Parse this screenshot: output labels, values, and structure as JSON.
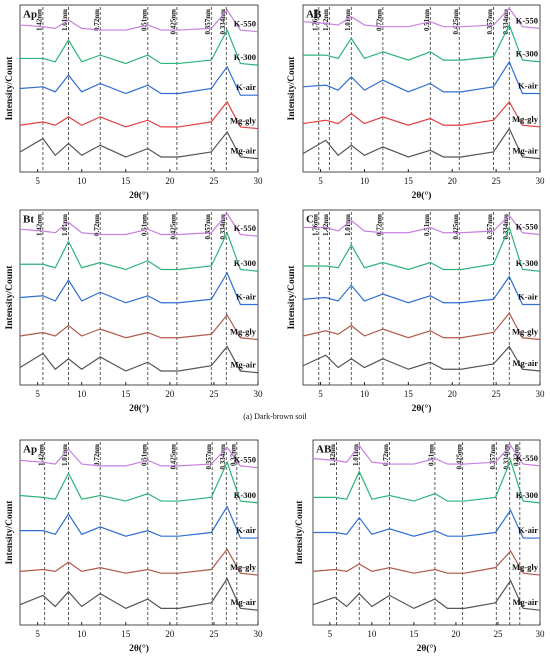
{
  "caption": "(a) Dark-brown soil",
  "chart_data": [
    {
      "type": "line",
      "title": "Ap",
      "x_label": "2θ(°)",
      "y_label": "Intensity/Count",
      "xlim": [
        3,
        30
      ],
      "xticks": [
        5,
        10,
        15,
        20,
        25,
        30
      ],
      "ylim": [
        0,
        100
      ],
      "x": [
        3,
        5.6,
        7,
        8.5,
        10,
        12.1,
        15,
        17.5,
        19,
        21,
        24.7,
        26.5,
        28,
        30
      ],
      "ref_lines": [
        {
          "value": 5.6,
          "label": "1.42nm"
        },
        {
          "value": 8.5,
          "label": "1.01nm"
        },
        {
          "value": 12.1,
          "label": "0.72nm"
        },
        {
          "value": 17.5,
          "label": "0.51nm"
        },
        {
          "value": 20.8,
          "label": "0.425nm"
        },
        {
          "value": 24.7,
          "label": "0.357nm"
        },
        {
          "value": 26.4,
          "label": "0.334nm"
        }
      ],
      "series": [
        {
          "name": "K-550",
          "color": "#c77fe0",
          "values": [
            88,
            87,
            86,
            91,
            86,
            85,
            85,
            88,
            85,
            85,
            86,
            97,
            85,
            84
          ]
        },
        {
          "name": "K-300",
          "color": "#2db37a",
          "values": [
            68,
            68,
            66,
            79,
            66,
            70,
            65,
            70,
            65,
            65,
            67,
            85,
            65,
            64
          ]
        },
        {
          "name": "K-air",
          "color": "#2f6fd0",
          "values": [
            50,
            51,
            48,
            58,
            48,
            53,
            47,
            52,
            47,
            47,
            50,
            63,
            46,
            46
          ]
        },
        {
          "name": "Mg-gly",
          "color": "#e04040",
          "values": [
            28,
            30,
            28,
            33,
            28,
            33,
            27,
            31,
            27,
            27,
            30,
            42,
            27,
            26
          ]
        },
        {
          "name": "Mg-air",
          "color": "#555555",
          "values": [
            12,
            20,
            10,
            17,
            10,
            16,
            9,
            14,
            9,
            9,
            12,
            24,
            9,
            8
          ]
        }
      ]
    },
    {
      "type": "line",
      "title": "AB",
      "x_label": "2θ(°)",
      "y_label": "Intensity/Count",
      "xlim": [
        3,
        30
      ],
      "xticks": [
        5,
        10,
        15,
        20,
        25,
        30
      ],
      "ylim": [
        0,
        100
      ],
      "x": [
        3,
        5.6,
        7,
        8.5,
        10,
        12.1,
        15,
        17.5,
        19,
        21,
        24.7,
        26.5,
        28,
        30
      ],
      "ref_lines": [
        {
          "value": 4.8,
          "label": "1.76nm"
        },
        {
          "value": 6.0,
          "label": "1.42nm"
        },
        {
          "value": 8.5,
          "label": "1.01nm"
        },
        {
          "value": 12.1,
          "label": "0.72nm"
        },
        {
          "value": 17.5,
          "label": "0.51nm"
        },
        {
          "value": 20.8,
          "label": "0.425nm"
        },
        {
          "value": 24.7,
          "label": "0.357nm"
        },
        {
          "value": 26.5,
          "label": "0.334nm"
        }
      ],
      "series": [
        {
          "name": "K-550",
          "color": "#c77fe0",
          "values": [
            90,
            89,
            88,
            93,
            88,
            87,
            87,
            90,
            87,
            87,
            88,
            98,
            87,
            86
          ]
        },
        {
          "name": "K-300",
          "color": "#2db37a",
          "values": [
            70,
            70,
            68,
            80,
            68,
            72,
            67,
            72,
            67,
            67,
            69,
            88,
            67,
            66
          ]
        },
        {
          "name": "K-air",
          "color": "#2f6fd0",
          "values": [
            51,
            52,
            49,
            57,
            49,
            55,
            48,
            53,
            48,
            48,
            51,
            66,
            47,
            47
          ]
        },
        {
          "name": "Mg-gly",
          "color": "#e04040",
          "values": [
            29,
            31,
            29,
            35,
            29,
            33,
            28,
            32,
            28,
            28,
            31,
            42,
            28,
            27
          ]
        },
        {
          "name": "Mg-air",
          "color": "#555555",
          "values": [
            11,
            19,
            10,
            16,
            10,
            15,
            9,
            13,
            9,
            9,
            12,
            26,
            9,
            8
          ]
        }
      ]
    },
    {
      "type": "line",
      "title": "Bt",
      "x_label": "2θ(°)",
      "y_label": "Intensity/Count",
      "xlim": [
        3,
        30
      ],
      "xticks": [
        5,
        10,
        15,
        20,
        25,
        30
      ],
      "ylim": [
        0,
        100
      ],
      "x": [
        3,
        5.6,
        7,
        8.5,
        10,
        12.1,
        15,
        17.5,
        19,
        21,
        24.7,
        26.5,
        28,
        30
      ],
      "ref_lines": [
        {
          "value": 5.6,
          "label": "1.42nm"
        },
        {
          "value": 8.5,
          "label": "1.01nm"
        },
        {
          "value": 12.1,
          "label": "0.72nm"
        },
        {
          "value": 17.5,
          "label": "0.51nm"
        },
        {
          "value": 20.8,
          "label": "0.425nm"
        },
        {
          "value": 24.7,
          "label": "0.357nm"
        },
        {
          "value": 26.4,
          "label": "0.334nm"
        }
      ],
      "series": [
        {
          "name": "K-550",
          "color": "#c77fe0",
          "values": [
            89,
            88,
            87,
            93,
            87,
            86,
            86,
            89,
            86,
            86,
            87,
            98,
            86,
            85
          ]
        },
        {
          "name": "K-300",
          "color": "#2db37a",
          "values": [
            69,
            69,
            67,
            82,
            67,
            70,
            66,
            71,
            66,
            66,
            68,
            87,
            66,
            65
          ]
        },
        {
          "name": "K-air",
          "color": "#2f6fd0",
          "values": [
            50,
            51,
            48,
            60,
            48,
            53,
            47,
            51,
            47,
            47,
            49,
            64,
            46,
            46
          ]
        },
        {
          "name": "Mg-gly",
          "color": "#b05a4a",
          "values": [
            28,
            30,
            28,
            34,
            28,
            32,
            27,
            30,
            27,
            27,
            29,
            40,
            27,
            26
          ]
        },
        {
          "name": "Mg-air",
          "color": "#555555",
          "values": [
            10,
            18,
            9,
            15,
            9,
            16,
            8,
            13,
            8,
            8,
            11,
            22,
            8,
            7
          ]
        }
      ]
    },
    {
      "type": "line",
      "title": "C",
      "x_label": "2θ(°)",
      "y_label": "Intensity/Count",
      "xlim": [
        3,
        30
      ],
      "xticks": [
        5,
        10,
        15,
        20,
        25,
        30
      ],
      "ylim": [
        0,
        100
      ],
      "x": [
        3,
        5.6,
        7,
        8.5,
        10,
        12.1,
        15,
        17.5,
        19,
        21,
        24.7,
        26.5,
        28,
        30
      ],
      "ref_lines": [
        {
          "value": 4.8,
          "label": "1.76nm"
        },
        {
          "value": 6.0,
          "label": "1.42nm"
        },
        {
          "value": 8.5,
          "label": "1.01nm"
        },
        {
          "value": 12.1,
          "label": "0.72nm"
        },
        {
          "value": 17.5,
          "label": "0.51nm"
        },
        {
          "value": 20.8,
          "label": "0.425nm"
        },
        {
          "value": 24.7,
          "label": "0.357nm"
        },
        {
          "value": 26.5,
          "label": "0.334nm"
        }
      ],
      "series": [
        {
          "name": "K-550",
          "color": "#c77fe0",
          "values": [
            90,
            90,
            88,
            94,
            88,
            87,
            87,
            90,
            87,
            87,
            88,
            97,
            87,
            86
          ]
        },
        {
          "name": "K-300",
          "color": "#2db37a",
          "values": [
            68,
            68,
            67,
            80,
            67,
            70,
            66,
            70,
            66,
            66,
            69,
            90,
            66,
            65
          ]
        },
        {
          "name": "K-air",
          "color": "#2f6fd0",
          "values": [
            49,
            50,
            48,
            57,
            48,
            52,
            47,
            51,
            47,
            47,
            49,
            62,
            46,
            46
          ]
        },
        {
          "name": "Mg-gly",
          "color": "#b05a4a",
          "values": [
            28,
            31,
            29,
            34,
            28,
            32,
            27,
            31,
            27,
            27,
            30,
            41,
            27,
            26
          ]
        },
        {
          "name": "Mg-air",
          "color": "#555555",
          "values": [
            11,
            17,
            10,
            15,
            10,
            15,
            9,
            13,
            9,
            9,
            12,
            22,
            9,
            8
          ]
        }
      ]
    },
    {
      "type": "line",
      "title": "Ap",
      "x_label": "2θ(°)",
      "y_label": "Intensity/Count",
      "xlim": [
        3,
        30
      ],
      "xticks": [
        5,
        10,
        15,
        20,
        25,
        30
      ],
      "ylim": [
        0,
        100
      ],
      "x": [
        3,
        5.6,
        7,
        8.5,
        10,
        12.1,
        15,
        17.5,
        19,
        21,
        24.7,
        26.5,
        28,
        30
      ],
      "ref_lines": [
        {
          "value": 5.8,
          "label": "1.42nm"
        },
        {
          "value": 8.5,
          "label": "1.01nm"
        },
        {
          "value": 12.1,
          "label": "0.72nm"
        },
        {
          "value": 17.5,
          "label": "0.51nm"
        },
        {
          "value": 20.8,
          "label": "0.425nm"
        },
        {
          "value": 24.8,
          "label": "0.357nm"
        },
        {
          "value": 26.4,
          "label": "0.334nm"
        },
        {
          "value": 27.6,
          "label": "0.32nm"
        }
      ],
      "series": [
        {
          "name": "K-550",
          "color": "#c77fe0",
          "values": [
            89,
            88,
            87,
            95,
            87,
            86,
            86,
            89,
            86,
            86,
            87,
            96,
            86,
            85
          ]
        },
        {
          "name": "K-300",
          "color": "#2db37a",
          "values": [
            70,
            69,
            68,
            82,
            68,
            70,
            67,
            71,
            67,
            67,
            69,
            88,
            67,
            66
          ]
        },
        {
          "name": "K-air",
          "color": "#2f6fd0",
          "values": [
            51,
            51,
            49,
            60,
            49,
            53,
            48,
            51,
            48,
            48,
            50,
            64,
            47,
            47
          ]
        },
        {
          "name": "Mg-gly",
          "color": "#b05a4a",
          "values": [
            29,
            30,
            29,
            34,
            29,
            31,
            28,
            30,
            28,
            28,
            30,
            41,
            28,
            27
          ]
        },
        {
          "name": "Mg-air",
          "color": "#555555",
          "values": [
            11,
            16,
            10,
            18,
            10,
            17,
            9,
            14,
            9,
            9,
            12,
            25,
            9,
            8
          ]
        }
      ]
    },
    {
      "type": "line",
      "title": "AB",
      "x_label": "2θ(°)",
      "y_label": "Intensity/Count",
      "xlim": [
        3,
        30
      ],
      "xticks": [
        5,
        10,
        15,
        20,
        25,
        30
      ],
      "ylim": [
        0,
        100
      ],
      "x": [
        3,
        5.6,
        7,
        8.5,
        10,
        12.1,
        15,
        17.5,
        19,
        21,
        24.7,
        26.5,
        28,
        30
      ],
      "ref_lines": [
        {
          "value": 5.8,
          "label": "1.42nm"
        },
        {
          "value": 8.5,
          "label": "1.01nm"
        },
        {
          "value": 12.1,
          "label": "0.72nm"
        },
        {
          "value": 17.5,
          "label": "0.51nm"
        },
        {
          "value": 20.8,
          "label": "0.425nm"
        },
        {
          "value": 24.8,
          "label": "0.357nm"
        },
        {
          "value": 26.4,
          "label": "0.334nm"
        },
        {
          "value": 27.6,
          "label": "0.32nm"
        }
      ],
      "series": [
        {
          "name": "K-550",
          "color": "#c77fe0",
          "values": [
            90,
            89,
            88,
            97,
            88,
            87,
            87,
            90,
            87,
            87,
            88,
            97,
            87,
            86
          ]
        },
        {
          "name": "K-300",
          "color": "#2db37a",
          "values": [
            69,
            69,
            68,
            83,
            68,
            70,
            67,
            71,
            67,
            67,
            69,
            89,
            67,
            66
          ]
        },
        {
          "name": "K-air",
          "color": "#2f6fd0",
          "values": [
            50,
            50,
            49,
            58,
            49,
            52,
            48,
            51,
            48,
            48,
            50,
            62,
            47,
            47
          ]
        },
        {
          "name": "Mg-gly",
          "color": "#b05a4a",
          "values": [
            29,
            30,
            29,
            33,
            29,
            31,
            28,
            30,
            28,
            28,
            31,
            40,
            28,
            27
          ]
        },
        {
          "name": "Mg-air",
          "color": "#555555",
          "values": [
            11,
            15,
            10,
            17,
            10,
            16,
            9,
            14,
            9,
            9,
            12,
            24,
            9,
            8
          ]
        }
      ]
    }
  ]
}
